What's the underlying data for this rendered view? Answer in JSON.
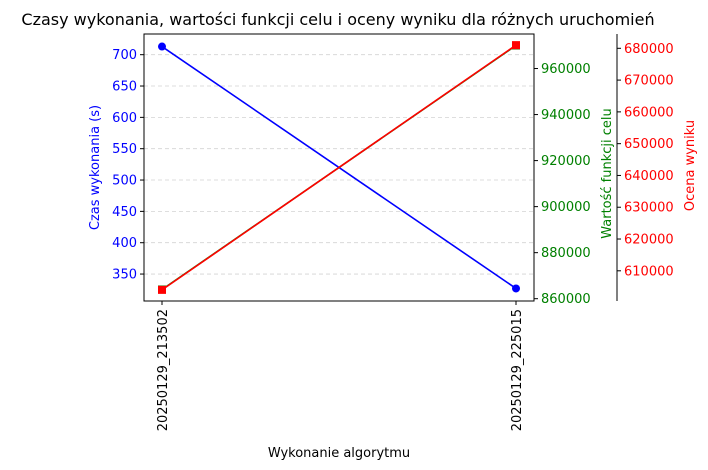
{
  "chart_data": {
    "type": "line",
    "title": "Czasy wykonania, wartości funkcji celu i oceny wyniku dla różnych uruchomień",
    "xlabel": "Wykonanie algorytmu",
    "categories": [
      "20250129_213502",
      "20250129_225015"
    ],
    "grid": true,
    "axes": [
      {
        "id": "left",
        "label": "Czas wykonania (s)",
        "color": "#0000ff",
        "ylim": [
          307,
          733
        ],
        "ticks": [
          "350",
          "400",
          "450",
          "500",
          "550",
          "600",
          "650",
          "700"
        ]
      },
      {
        "id": "right1",
        "label": "Wartość funkcji celu",
        "color": "#008000",
        "ylim": [
          859000,
          975000
        ],
        "ticks": [
          "860000",
          "880000",
          "900000",
          "920000",
          "940000",
          "960000"
        ]
      },
      {
        "id": "right2",
        "label": "Ocena wyniku",
        "color": "#ff0000",
        "ylim": [
          600500,
          684500
        ],
        "ticks": [
          "610000",
          "620000",
          "630000",
          "640000",
          "650000",
          "660000",
          "670000",
          "680000"
        ]
      }
    ],
    "series": [
      {
        "axis": "left",
        "color": "#0000ff",
        "marker": "circle",
        "values": [
          713,
          327
        ]
      },
      {
        "axis": "right1",
        "color": "#008000",
        "marker": "square",
        "values": [
          864000,
          970000
        ]
      },
      {
        "axis": "right2",
        "color": "#ff0000",
        "marker": "square",
        "values": [
          604000,
          681000
        ]
      }
    ]
  }
}
